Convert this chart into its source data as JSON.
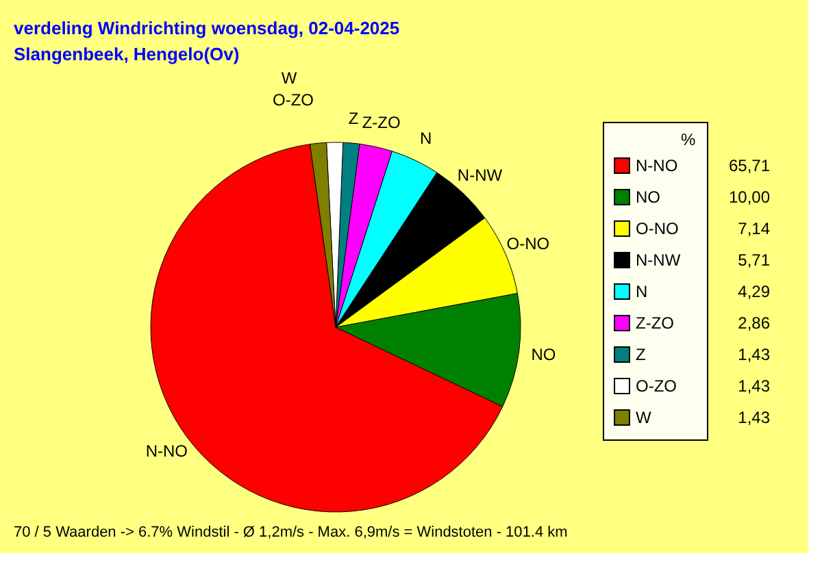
{
  "chart_data": {
    "type": "pie",
    "title": "verdeling Windrichting   woensdag, 02-04-2025",
    "subtitle": "Slangenbeek, Hengelo(Ov)",
    "categories": [
      "N-NO",
      "NO",
      "O-NO",
      "N-NW",
      "N",
      "Z-ZO",
      "Z",
      "O-ZO",
      "W"
    ],
    "values": [
      65.71,
      10.0,
      7.14,
      5.71,
      4.29,
      2.86,
      1.43,
      1.43,
      1.43
    ],
    "value_labels": [
      "65,71",
      "10,00",
      "7,14",
      "5,71",
      "4,29",
      "2,86",
      "1,43",
      "1,43",
      "1,43"
    ],
    "colors": [
      "#ff0000",
      "#008000",
      "#ffff00",
      "#000000",
      "#00ffff",
      "#ff00ff",
      "#008080",
      "#ffffff",
      "#808000"
    ],
    "legend_title": "%",
    "legend": "right",
    "annotations": [
      "70 / 5 Waarden  -> 6.7% Windstil   -   Ø 1,2m/s  -  Max. 6,9m/s = Windstoten   -   101.4 km"
    ]
  }
}
